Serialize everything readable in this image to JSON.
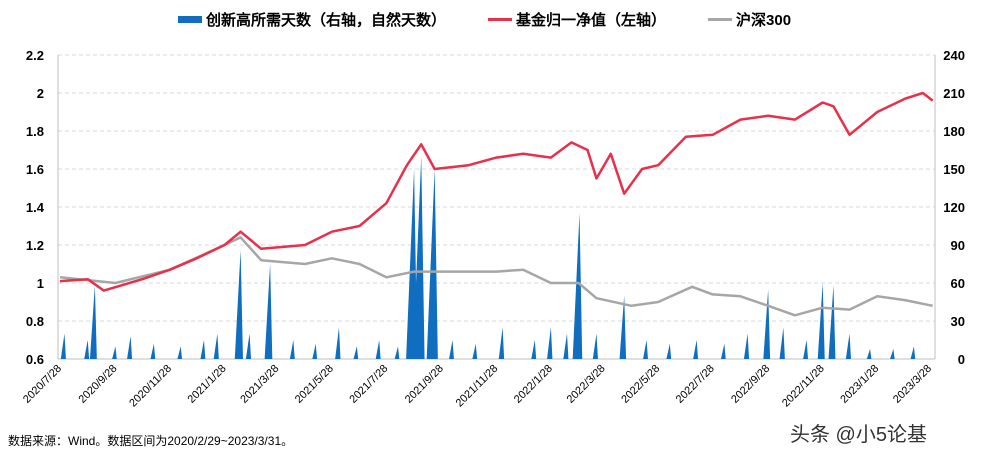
{
  "legend": {
    "bars": "创新高所需天数（右轴，自然天数）",
    "fund": "基金归一净值（左轴）",
    "index": "沪深300"
  },
  "colors": {
    "bars": "#0f6ec0",
    "fund": "#e8304a",
    "index": "#a6a6a6"
  },
  "footer": "数据来源：Wind。数据区间为2020/2/29~2023/3/31。",
  "watermark": "头条 @小5论基",
  "chart_data": {
    "type": "line+area",
    "x_range": [
      "2020/7/28",
      "2023/3/31"
    ],
    "x_ticks": [
      "2020/7/28",
      "2020/9/28",
      "2020/11/28",
      "2021/1/28",
      "2021/3/28",
      "2021/5/28",
      "2021/7/28",
      "2021/9/28",
      "2021/11/28",
      "2022/1/28",
      "2022/3/28",
      "2022/5/28",
      "2022/7/28",
      "2022/9/28",
      "2022/11/28",
      "2023/1/28",
      "2023/3/28"
    ],
    "y_left": {
      "range": [
        0.6,
        2.2
      ],
      "ticks": [
        "0.6",
        "0.8",
        "1",
        "1.2",
        "1.4",
        "1.6",
        "1.8",
        "2",
        "2.2"
      ]
    },
    "y_right": {
      "range": [
        0,
        240
      ],
      "ticks": [
        "0",
        "30",
        "60",
        "90",
        "120",
        "150",
        "180",
        "210",
        "240"
      ]
    },
    "grid": true,
    "legend_position": "top",
    "series": [
      {
        "name": "基金归一净值（左轴）",
        "axis": "left",
        "points": [
          [
            "2020/7/28",
            1.01
          ],
          [
            "2020/8/28",
            1.02
          ],
          [
            "2020/9/15",
            0.96
          ],
          [
            "2020/10/28",
            1.02
          ],
          [
            "2020/11/28",
            1.07
          ],
          [
            "2020/12/28",
            1.13
          ],
          [
            "2021/1/28",
            1.2
          ],
          [
            "2021/2/15",
            1.27
          ],
          [
            "2021/3/10",
            1.18
          ],
          [
            "2021/4/28",
            1.2
          ],
          [
            "2021/5/28",
            1.27
          ],
          [
            "2021/6/28",
            1.3
          ],
          [
            "2021/7/28",
            1.42
          ],
          [
            "2021/8/20",
            1.62
          ],
          [
            "2021/9/5",
            1.73
          ],
          [
            "2021/9/20",
            1.6
          ],
          [
            "2021/10/28",
            1.62
          ],
          [
            "2021/11/28",
            1.66
          ],
          [
            "2021/12/28",
            1.68
          ],
          [
            "2022/1/28",
            1.66
          ],
          [
            "2022/2/20",
            1.74
          ],
          [
            "2022/3/10",
            1.7
          ],
          [
            "2022/3/20",
            1.55
          ],
          [
            "2022/4/5",
            1.68
          ],
          [
            "2022/4/20",
            1.47
          ],
          [
            "2022/5/10",
            1.6
          ],
          [
            "2022/5/28",
            1.62
          ],
          [
            "2022/6/28",
            1.77
          ],
          [
            "2022/7/28",
            1.78
          ],
          [
            "2022/8/28",
            1.86
          ],
          [
            "2022/9/28",
            1.88
          ],
          [
            "2022/10/28",
            1.86
          ],
          [
            "2022/11/28",
            1.95
          ],
          [
            "2022/12/10",
            1.93
          ],
          [
            "2022/12/28",
            1.78
          ],
          [
            "2023/1/28",
            1.9
          ],
          [
            "2023/2/28",
            1.97
          ],
          [
            "2023/3/20",
            2.0
          ],
          [
            "2023/3/31",
            1.96
          ]
        ]
      },
      {
        "name": "沪深300",
        "axis": "left",
        "points": [
          [
            "2020/7/28",
            1.03
          ],
          [
            "2020/9/28",
            1.0
          ],
          [
            "2020/11/28",
            1.07
          ],
          [
            "2021/1/28",
            1.2
          ],
          [
            "2021/2/15",
            1.24
          ],
          [
            "2021/3/10",
            1.12
          ],
          [
            "2021/4/28",
            1.1
          ],
          [
            "2021/5/28",
            1.13
          ],
          [
            "2021/6/28",
            1.1
          ],
          [
            "2021/7/28",
            1.03
          ],
          [
            "2021/8/28",
            1.06
          ],
          [
            "2021/9/28",
            1.06
          ],
          [
            "2021/11/28",
            1.06
          ],
          [
            "2021/12/28",
            1.07
          ],
          [
            "2022/1/28",
            1.0
          ],
          [
            "2022/2/28",
            1.0
          ],
          [
            "2022/3/20",
            0.92
          ],
          [
            "2022/4/28",
            0.88
          ],
          [
            "2022/5/28",
            0.9
          ],
          [
            "2022/7/5",
            0.98
          ],
          [
            "2022/7/28",
            0.94
          ],
          [
            "2022/8/28",
            0.93
          ],
          [
            "2022/9/28",
            0.88
          ],
          [
            "2022/10/28",
            0.83
          ],
          [
            "2022/11/28",
            0.87
          ],
          [
            "2022/12/28",
            0.86
          ],
          [
            "2023/1/28",
            0.93
          ],
          [
            "2023/2/28",
            0.91
          ],
          [
            "2023/3/31",
            0.88
          ]
        ]
      },
      {
        "name": "创新高所需天数（右轴，自然天数）",
        "axis": "right",
        "type": "area",
        "points": [
          [
            "2020/8/2",
            20
          ],
          [
            "2020/8/28",
            15
          ],
          [
            "2020/9/5",
            58
          ],
          [
            "2020/9/28",
            10
          ],
          [
            "2020/10/15",
            18
          ],
          [
            "2020/11/10",
            12
          ],
          [
            "2020/12/10",
            10
          ],
          [
            "2021/1/5",
            15
          ],
          [
            "2021/1/20",
            20
          ],
          [
            "2021/2/15",
            86
          ],
          [
            "2021/2/25",
            20
          ],
          [
            "2021/3/20",
            75
          ],
          [
            "2021/4/15",
            15
          ],
          [
            "2021/5/10",
            12
          ],
          [
            "2021/6/5",
            25
          ],
          [
            "2021/6/25",
            10
          ],
          [
            "2021/7/20",
            15
          ],
          [
            "2021/8/10",
            10
          ],
          [
            "2021/8/28",
            150
          ],
          [
            "2021/9/5",
            160
          ],
          [
            "2021/9/20",
            150
          ],
          [
            "2021/10/10",
            15
          ],
          [
            "2021/11/5",
            12
          ],
          [
            "2021/12/5",
            25
          ],
          [
            "2022/1/10",
            15
          ],
          [
            "2022/1/28",
            25
          ],
          [
            "2022/2/15",
            20
          ],
          [
            "2022/3/1",
            115
          ],
          [
            "2022/3/20",
            20
          ],
          [
            "2022/4/20",
            50
          ],
          [
            "2022/5/15",
            15
          ],
          [
            "2022/6/10",
            12
          ],
          [
            "2022/7/10",
            15
          ],
          [
            "2022/8/10",
            12
          ],
          [
            "2022/9/5",
            20
          ],
          [
            "2022/9/28",
            55
          ],
          [
            "2022/10/15",
            25
          ],
          [
            "2022/11/10",
            15
          ],
          [
            "2022/11/28",
            60
          ],
          [
            "2022/12/10",
            58
          ],
          [
            "2022/12/28",
            20
          ],
          [
            "2023/1/20",
            8
          ],
          [
            "2023/2/15",
            8
          ],
          [
            "2023/3/10",
            10
          ]
        ]
      }
    ]
  }
}
